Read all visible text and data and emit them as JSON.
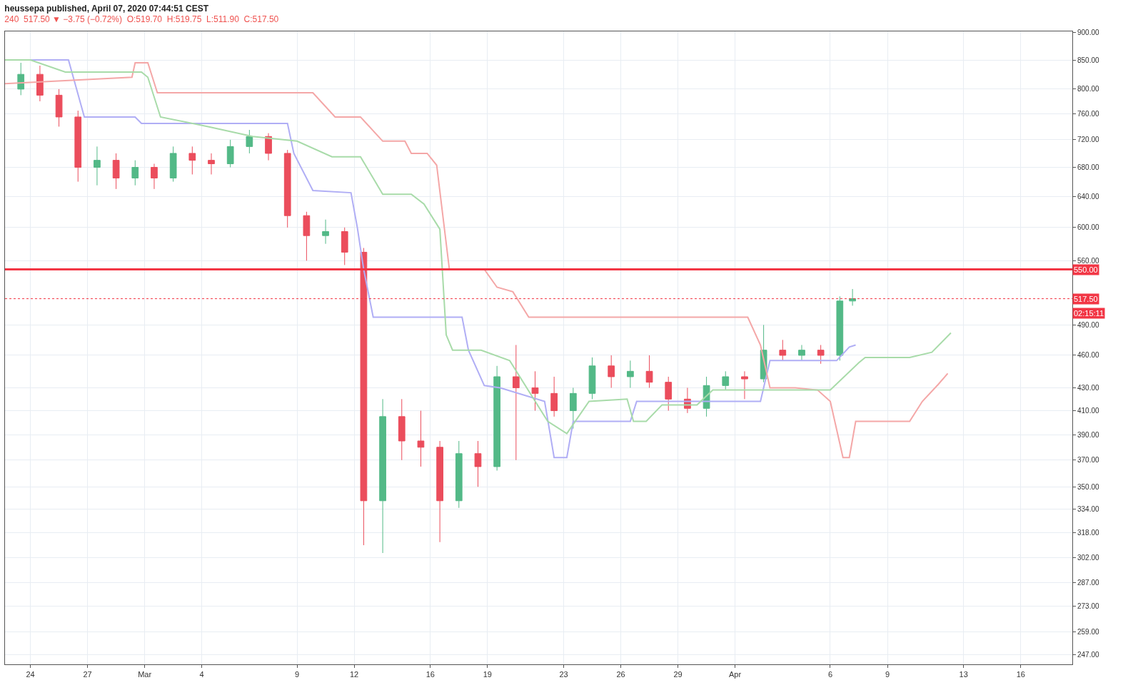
{
  "chart_data": {
    "type": "candlestick",
    "title": "heussepa published, April 07, 2020 07:44:51 CEST",
    "subtitle": "240  517.50 ▼ −3.75 (−0.72%)  O:519.70  H:519.75  L:511.90  C:517.50",
    "x": [
      "2020-02-23T12:00",
      "2020-02-24T12:00",
      "2020-02-25T12:00",
      "2020-02-26T12:00",
      "2020-02-27T12:00",
      "2020-02-28T12:00",
      "2020-02-29T12:00",
      "2020-03-01T12:00",
      "2020-03-02T12:00",
      "2020-03-03T12:00",
      "2020-03-04T12:00",
      "2020-03-05T12:00",
      "2020-03-06T12:00",
      "2020-03-07T12:00",
      "2020-03-08T12:00",
      "2020-03-09T12:00",
      "2020-03-10T12:00",
      "2020-03-11T12:00",
      "2020-03-12T12:00",
      "2020-03-13T12:00",
      "2020-03-14T12:00",
      "2020-03-15T12:00",
      "2020-03-16T12:00",
      "2020-03-17T12:00",
      "2020-03-18T12:00",
      "2020-03-19T12:00",
      "2020-03-20T12:00",
      "2020-03-21T12:00",
      "2020-03-22T12:00",
      "2020-03-23T12:00",
      "2020-03-24T12:00",
      "2020-03-25T12:00",
      "2020-03-26T12:00",
      "2020-03-27T12:00",
      "2020-03-28T12:00",
      "2020-03-29T12:00",
      "2020-03-30T12:00",
      "2020-03-31T12:00",
      "2020-04-01T12:00",
      "2020-04-02T12:00",
      "2020-04-03T12:00",
      "2020-04-04T12:00",
      "2020-04-05T12:00",
      "2020-04-06T12:00",
      "2020-04-07T04:00"
    ],
    "ohlc": [
      [
        800,
        845,
        790,
        825
      ],
      [
        825,
        840,
        780,
        790
      ],
      [
        790,
        800,
        740,
        755
      ],
      [
        755,
        765,
        660,
        680
      ],
      [
        680,
        710,
        655,
        690
      ],
      [
        690,
        700,
        650,
        665
      ],
      [
        665,
        690,
        655,
        680
      ],
      [
        680,
        685,
        650,
        665
      ],
      [
        665,
        710,
        660,
        700
      ],
      [
        700,
        710,
        670,
        690
      ],
      [
        690,
        700,
        670,
        685
      ],
      [
        685,
        720,
        680,
        710
      ],
      [
        710,
        735,
        700,
        725
      ],
      [
        725,
        730,
        690,
        700
      ],
      [
        700,
        705,
        600,
        615
      ],
      [
        615,
        620,
        560,
        590
      ],
      [
        590,
        610,
        580,
        595
      ],
      [
        595,
        600,
        555,
        570
      ],
      [
        570,
        575,
        310,
        340
      ],
      [
        340,
        420,
        305,
        405
      ],
      [
        405,
        420,
        370,
        385
      ],
      [
        385,
        410,
        365,
        380
      ],
      [
        380,
        385,
        312,
        340
      ],
      [
        340,
        385,
        335,
        375
      ],
      [
        375,
        385,
        350,
        365
      ],
      [
        365,
        450,
        362,
        440
      ],
      [
        440,
        470,
        370,
        430
      ],
      [
        430,
        445,
        410,
        425
      ],
      [
        425,
        440,
        405,
        410
      ],
      [
        410,
        430,
        395,
        425
      ],
      [
        425,
        458,
        420,
        450
      ],
      [
        450,
        460,
        430,
        440
      ],
      [
        440,
        455,
        430,
        445
      ],
      [
        445,
        460,
        430,
        435
      ],
      [
        435,
        440,
        410,
        420
      ],
      [
        420,
        430,
        408,
        412
      ],
      [
        412,
        440,
        405,
        432
      ],
      [
        432,
        445,
        428,
        440
      ],
      [
        440,
        445,
        420,
        438
      ],
      [
        438,
        490,
        435,
        465
      ],
      [
        465,
        475,
        455,
        460
      ],
      [
        460,
        470,
        455,
        465
      ],
      [
        465,
        470,
        452,
        460
      ],
      [
        460,
        520,
        455,
        515
      ],
      [
        515,
        528,
        510,
        517.5
      ]
    ],
    "colors": [
      "#53b987",
      "#eb4d5c",
      "#eb4d5c",
      "#eb4d5c",
      "#53b987",
      "#eb4d5c",
      "#53b987",
      "#eb4d5c",
      "#53b987",
      "#eb4d5c",
      "#eb4d5c",
      "#53b987",
      "#53b987",
      "#eb4d5c",
      "#eb4d5c",
      "#eb4d5c",
      "#53b987",
      "#eb4d5c",
      "#eb4d5c",
      "#53b987",
      "#eb4d5c",
      "#eb4d5c",
      "#eb4d5c",
      "#53b987",
      "#eb4d5c",
      "#53b987",
      "#eb4d5c",
      "#eb4d5c",
      "#eb4d5c",
      "#53b987",
      "#53b987",
      "#eb4d5c",
      "#53b987",
      "#eb4d5c",
      "#eb4d5c",
      "#eb4d5c",
      "#53b987",
      "#53b987",
      "#eb4d5c",
      "#53b987",
      "#eb4d5c",
      "#53b987",
      "#eb4d5c",
      "#53b987",
      "#53b987"
    ],
    "series": [
      {
        "type": "line",
        "color": "#b0aef5",
        "x": [
          "2020-02-22T16:00",
          "2020-02-26T00:00",
          "2020-02-26T20:00",
          "2020-02-29T12:00",
          "2020-02-29T20:00",
          "2020-03-08T12:00",
          "2020-03-08T20:00",
          "2020-03-09T20:00",
          "2020-03-11T20:00",
          "2020-03-12T04:00",
          "2020-03-12T12:00",
          "2020-03-13T00:00",
          "2020-03-17T16:00",
          "2020-03-18T00:00",
          "2020-03-18T20:00",
          "2020-03-19T16:00",
          "2020-03-22T00:00",
          "2020-03-22T12:00",
          "2020-03-23T04:00",
          "2020-03-23T12:00",
          "2020-03-26T12:00",
          "2020-03-26T20:00",
          "2020-04-02T08:00",
          "2020-04-02T20:00",
          "2020-04-06T08:00",
          "2020-04-07T00:00",
          "2020-04-07T08:00"
        ],
        "values": [
          850,
          850,
          755,
          755,
          745,
          745,
          700,
          648,
          645,
          600,
          550,
          498,
          498,
          465,
          432,
          430,
          418,
          372,
          372,
          401,
          401,
          418,
          418,
          455,
          455,
          468,
          470
        ]
      },
      {
        "type": "line",
        "color": "#f4a7a7",
        "x": [
          "2020-02-22T16:00",
          "2020-02-29T08:00",
          "2020-02-29T12:00",
          "2020-03-01T04:00",
          "2020-03-01T16:00",
          "2020-03-09T20:00",
          "2020-03-11T00:00",
          "2020-03-12T08:00",
          "2020-03-13T12:00",
          "2020-03-14T16:00",
          "2020-03-15T00:00",
          "2020-03-15T20:00",
          "2020-03-16T08:00",
          "2020-03-17T00:00",
          "2020-03-18T20:00",
          "2020-03-19T12:00",
          "2020-03-20T08:00",
          "2020-03-21T04:00",
          "2020-04-01T16:00",
          "2020-04-02T08:00",
          "2020-04-02T20:00",
          "2020-04-04T04:00",
          "2020-04-05T08:00",
          "2020-04-06T00:00",
          "2020-04-06T16:00",
          "2020-04-07T00:00",
          "2020-04-07T08:00",
          "2020-04-10T04:00",
          "2020-04-10T20:00",
          "2020-04-11T16:00",
          "2020-04-12T04:00"
        ],
        "values": [
          809,
          820,
          845,
          845,
          794,
          794,
          755,
          755,
          718,
          718,
          700,
          700,
          683,
          550,
          550,
          530,
          525,
          498,
          498,
          470,
          430,
          430,
          428,
          418,
          372,
          372,
          401,
          401,
          418,
          433,
          443
        ]
      },
      {
        "type": "line",
        "color": "#a8dba9",
        "x": [
          "2020-02-22T16:00",
          "2020-02-24T00:00",
          "2020-02-25T20:00",
          "2020-02-29T20:00",
          "2020-03-01T04:00",
          "2020-03-01T20:00",
          "2020-03-04T08:00",
          "2020-03-06T16:00",
          "2020-03-09T00:00",
          "2020-03-10T20:00",
          "2020-03-12T08:00",
          "2020-03-13T12:00",
          "2020-03-15T00:00",
          "2020-03-15T16:00",
          "2020-03-16T12:00",
          "2020-03-16T20:00",
          "2020-03-17T04:00",
          "2020-03-18T16:00",
          "2020-03-20T04:00",
          "2020-03-22T04:00",
          "2020-03-23T04:00",
          "2020-03-24T08:00",
          "2020-03-26T08:00",
          "2020-03-26T16:00",
          "2020-03-27T08:00",
          "2020-03-28T04:00",
          "2020-03-30T00:00",
          "2020-03-30T20:00",
          "2020-04-03T20:00",
          "2020-04-06T00:00",
          "2020-04-07T12:00",
          "2020-04-07T20:00",
          "2020-04-10T04:00",
          "2020-04-11T08:00",
          "2020-04-12T08:00"
        ],
        "values": [
          850,
          850,
          829,
          829,
          820,
          755,
          740,
          725,
          718,
          695,
          695,
          643,
          643,
          630,
          598,
          480,
          465,
          465,
          455,
          401,
          391,
          418,
          420,
          401,
          401,
          415,
          415,
          428,
          428,
          428,
          453,
          458,
          458,
          463,
          482
        ]
      }
    ],
    "ref_lines": [
      {
        "axis": "y",
        "value": 550,
        "label": "550.00",
        "color": "#f23645",
        "line_style": "solid"
      },
      {
        "axis": "y",
        "value": 517.5,
        "label": "517.50",
        "color": "#f23645",
        "line_style": "dotted"
      }
    ],
    "annotations": [
      "02:15:11"
    ],
    "log": true,
    "grid": true,
    "xlim": [
      "2020-02-22T16:00",
      "2020-04-18T17:00"
    ],
    "xticks": [
      {
        "value": "2020-02-24",
        "label": "24"
      },
      {
        "value": "2020-02-27",
        "label": "27"
      },
      {
        "value": "2020-03-01",
        "label": "Mar"
      },
      {
        "value": "2020-03-04",
        "label": "4"
      },
      {
        "value": "2020-03-09",
        "label": "9"
      },
      {
        "value": "2020-03-12",
        "label": "12"
      },
      {
        "value": "2020-03-16",
        "label": "16"
      },
      {
        "value": "2020-03-19",
        "label": "19"
      },
      {
        "value": "2020-03-23",
        "label": "23"
      },
      {
        "value": "2020-03-26",
        "label": "26"
      },
      {
        "value": "2020-03-29",
        "label": "29"
      },
      {
        "value": "2020-04-01",
        "label": "Apr"
      },
      {
        "value": "2020-04-06",
        "label": "6"
      },
      {
        "value": "2020-04-09",
        "label": "9"
      },
      {
        "value": "2020-04-13",
        "label": "13"
      },
      {
        "value": "2020-04-16",
        "label": "16"
      }
    ],
    "ylim": [
      242,
      902
    ],
    "yticks": [
      {
        "value": 900,
        "label": "900.00"
      },
      {
        "value": 850,
        "label": "850.00"
      },
      {
        "value": 800,
        "label": "800.00"
      },
      {
        "value": 760,
        "label": "760.00"
      },
      {
        "value": 720,
        "label": "720.00"
      },
      {
        "value": 680,
        "label": "680.00"
      },
      {
        "value": 640,
        "label": "640.00"
      },
      {
        "value": 600,
        "label": "600.00"
      },
      {
        "value": 560,
        "label": "560.00"
      },
      {
        "value": 490,
        "label": "490.00"
      },
      {
        "value": 460,
        "label": "460.00"
      },
      {
        "value": 430,
        "label": "430.00"
      },
      {
        "value": 410,
        "label": "410.00"
      },
      {
        "value": 390,
        "label": "390.00"
      },
      {
        "value": 370,
        "label": "370.00"
      },
      {
        "value": 350,
        "label": "350.00"
      },
      {
        "value": 334,
        "label": "334.00"
      },
      {
        "value": 318,
        "label": "318.00"
      },
      {
        "value": 302,
        "label": "302.00"
      },
      {
        "value": 287,
        "label": "287.00"
      },
      {
        "value": 273,
        "label": "273.00"
      },
      {
        "value": 259,
        "label": "259.00"
      },
      {
        "value": 247,
        "label": "247.00"
      }
    ]
  }
}
